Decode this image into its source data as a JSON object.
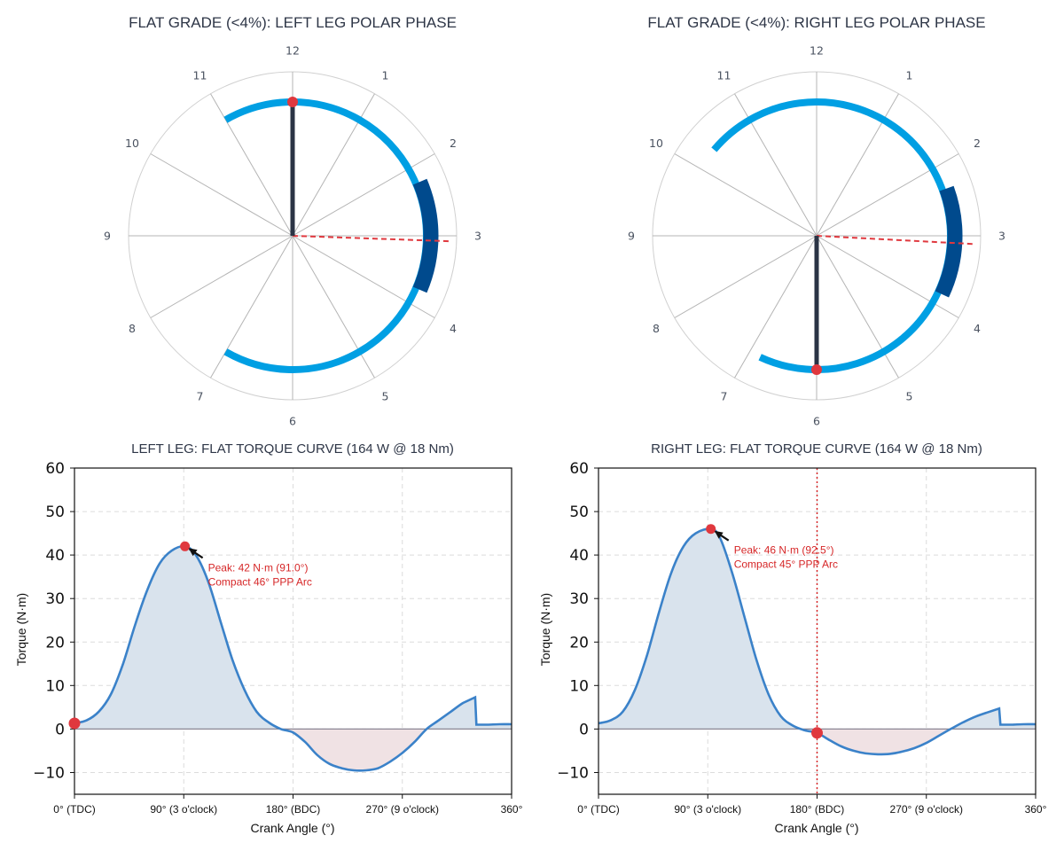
{
  "colors": {
    "arc": "#009FE3",
    "power_phase": "#004A8D",
    "crank": "#2B3445",
    "marker": "#E0383E",
    "curve": "#3B82C9",
    "pos_fill": "#D9E3ED",
    "neg_fill": "#F0E2E4"
  },
  "chart_data": [
    {
      "type": "polar",
      "title": "FLAT GRADE (<4%): LEFT LEG POLAR PHASE",
      "clock_labels": [
        "12",
        "1",
        "2",
        "3",
        "4",
        "5",
        "6",
        "7",
        "8",
        "9",
        "10",
        "11"
      ],
      "pedal_arc_deg": [
        -30,
        210
      ],
      "power_phase_arc_deg": [
        67,
        113
      ],
      "crank_angle_deg": 0,
      "peak_direction_deg": 92
    },
    {
      "type": "polar",
      "title": "FLAT GRADE (<4%): RIGHT LEG POLAR PHASE",
      "clock_labels": [
        "12",
        "1",
        "2",
        "3",
        "4",
        "5",
        "6",
        "7",
        "8",
        "9",
        "10",
        "11"
      ],
      "pedal_arc_deg": [
        -50,
        205
      ],
      "power_phase_arc_deg": [
        70,
        115
      ],
      "crank_angle_deg": 180,
      "peak_direction_deg": 93
    },
    {
      "type": "line",
      "title": "LEFT LEG: FLAT TORQUE CURVE (164 W @ 18 Nm)",
      "xlabel": "Crank Angle (°)",
      "ylabel": "Torque (N·m)",
      "xlim": [
        0,
        360
      ],
      "ylim": [
        -15,
        60
      ],
      "xticks": [
        0,
        90,
        180,
        270,
        360
      ],
      "xtick_labels": [
        "0° (TDC)",
        "90° (3 o'clock)",
        "180° (BDC)",
        "270° (9 o'clock)",
        "360°"
      ],
      "yticks": [
        -10,
        0,
        10,
        20,
        30,
        40,
        50,
        60
      ],
      "ytick_labels": [
        "−10",
        "0",
        "10",
        "20",
        "30",
        "40",
        "50",
        "60"
      ],
      "x": [
        0,
        10,
        20,
        30,
        40,
        50,
        60,
        70,
        80,
        91,
        100,
        110,
        120,
        130,
        140,
        150,
        160,
        170,
        180,
        190,
        200,
        210,
        220,
        230,
        240,
        250,
        260,
        270,
        280,
        290,
        300,
        310,
        320,
        330,
        331,
        340,
        350,
        360
      ],
      "y": [
        1.3,
        2,
        4,
        8,
        15,
        24,
        32,
        38,
        41,
        42,
        40,
        34,
        25,
        16,
        9,
        4,
        1.5,
        0,
        -0.8,
        -3,
        -6,
        -8,
        -9,
        -9.5,
        -9.5,
        -9,
        -7.5,
        -5.5,
        -3,
        0,
        2,
        4,
        6,
        7.3,
        1,
        1,
        1.1,
        1.1
      ],
      "current_marker": {
        "x": 0,
        "y": 1.3
      },
      "peak": {
        "x": 91,
        "y": 42
      },
      "annotation": [
        "Peak: 42 N·m (91.0°)",
        "Compact 46° PPP Arc"
      ],
      "vline": null
    },
    {
      "type": "line",
      "title": "RIGHT LEG: FLAT TORQUE CURVE (164 W @ 18 Nm)",
      "xlabel": "Crank Angle (°)",
      "ylabel": "Torque (N·m)",
      "xlim": [
        0,
        360
      ],
      "ylim": [
        -15,
        60
      ],
      "xticks": [
        0,
        90,
        180,
        270,
        360
      ],
      "xtick_labels": [
        "0° (TDC)",
        "90° (3 o'clock)",
        "180° (BDC)",
        "270° (9 o'clock)",
        "360°"
      ],
      "yticks": [
        -10,
        0,
        10,
        20,
        30,
        40,
        50,
        60
      ],
      "ytick_labels": [
        "−10",
        "0",
        "10",
        "20",
        "30",
        "40",
        "50",
        "60"
      ],
      "x": [
        0,
        10,
        20,
        30,
        40,
        50,
        60,
        70,
        80,
        92.5,
        100,
        110,
        120,
        130,
        140,
        150,
        160,
        170,
        180,
        190,
        200,
        210,
        220,
        230,
        240,
        250,
        260,
        270,
        280,
        290,
        300,
        310,
        320,
        330,
        331,
        340,
        350,
        360
      ],
      "y": [
        1.3,
        2,
        4,
        9,
        17,
        27,
        36,
        42,
        45,
        46,
        44,
        36,
        26,
        16,
        8,
        3,
        0.8,
        -0.3,
        -0.9,
        -2.5,
        -4,
        -5,
        -5.6,
        -5.8,
        -5.7,
        -5.2,
        -4.4,
        -3.2,
        -1.6,
        0,
        1.5,
        2.8,
        3.8,
        4.7,
        1,
        1,
        1.1,
        1.1
      ],
      "current_marker": {
        "x": 180,
        "y": -0.9
      },
      "peak": {
        "x": 92.5,
        "y": 46
      },
      "annotation": [
        "Peak: 46 N·m (92.5°)",
        "Compact 45° PPP Arc"
      ],
      "vline": 180
    }
  ]
}
